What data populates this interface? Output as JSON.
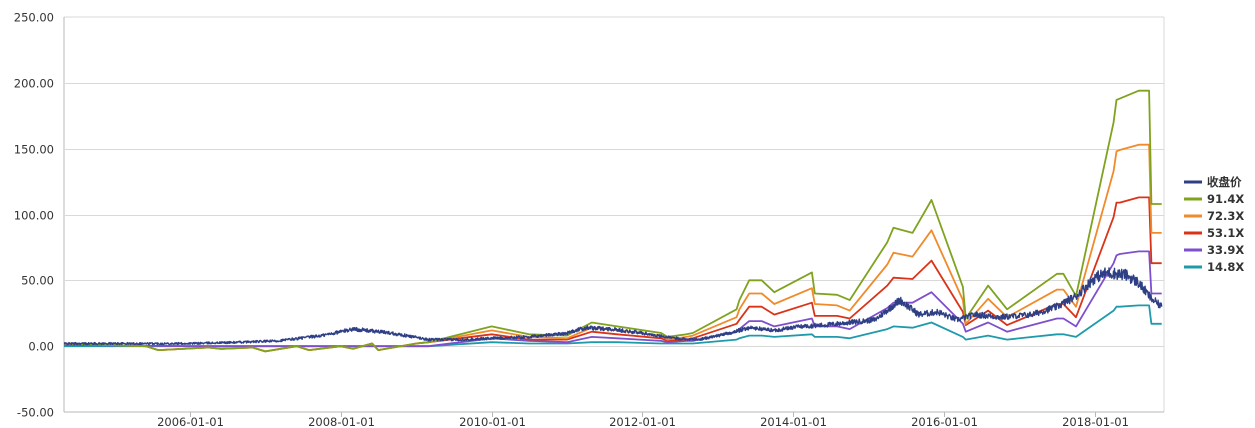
{
  "chart_data": {
    "type": "line",
    "title": "",
    "xlabel": "",
    "ylabel": "",
    "ylim": [
      -50,
      250
    ],
    "yticks": [
      "-50.00",
      "0.00",
      "50.00",
      "100.00",
      "150.00",
      "200.00",
      "250.00"
    ],
    "xlim": [
      "2004-05-01",
      "2018-12-01"
    ],
    "xticks": [
      "2006-01-01",
      "2008-01-01",
      "2010-01-01",
      "2012-01-01",
      "2014-01-01",
      "2016-01-01",
      "2018-01-01"
    ],
    "grid": "horizontal",
    "legend_position": "right",
    "colors": {
      "grid": "#d9d9d9",
      "axis": "#b8b8b8",
      "text": "#333333"
    },
    "series": [
      {
        "name": "收盘价",
        "color": "#2e3f86",
        "noisy": true,
        "x": [
          "2004-05-01",
          "2005-01-01",
          "2006-01-01",
          "2006-09-01",
          "2007-03-01",
          "2007-10-01",
          "2008-03-01",
          "2008-09-01",
          "2009-03-01",
          "2009-08-01",
          "2010-01-01",
          "2010-07-01",
          "2011-01-01",
          "2011-04-01",
          "2011-08-01",
          "2012-01-01",
          "2012-06-01",
          "2012-10-01",
          "2013-03-01",
          "2013-06-01",
          "2013-10-01",
          "2014-02-01",
          "2014-06-01",
          "2014-10-01",
          "2015-02-01",
          "2015-06-01",
          "2015-09-01",
          "2015-12-01",
          "2016-03-01",
          "2016-06-01",
          "2016-10-01",
          "2017-03-01",
          "2017-07-01",
          "2017-10-01",
          "2018-01-01",
          "2018-03-01",
          "2018-06-01",
          "2018-08-01",
          "2018-10-01",
          "2018-11-20"
        ],
        "y": [
          2,
          2,
          2,
          3,
          4,
          8,
          13,
          10,
          5,
          5,
          6,
          7,
          10,
          14,
          13,
          10,
          6,
          5,
          10,
          14,
          12,
          15,
          16,
          18,
          20,
          35,
          24,
          26,
          20,
          24,
          22,
          24,
          30,
          38,
          52,
          56,
          54,
          48,
          36,
          30
        ]
      },
      {
        "name": "91.4X",
        "color": "#7fa21f",
        "x": [
          "2004-05-01",
          "2005-06-01",
          "2005-08-01",
          "2006-04-01",
          "2006-06-01",
          "2006-11-01",
          "2007-01-01",
          "2007-06-01",
          "2007-08-01",
          "2008-01-01",
          "2008-03-01",
          "2008-06-01",
          "2008-07-01",
          "2009-01-01",
          "2009-03-01",
          "2010-01-01",
          "2010-07-01",
          "2011-01-01",
          "2011-05-01",
          "2011-09-01",
          "2012-04-01",
          "2012-05-01",
          "2012-08-01",
          "2012-09-01",
          "2013-04-01",
          "2013-04-15",
          "2013-06-01",
          "2013-08-01",
          "2013-10-01",
          "2014-04-01",
          "2014-04-15",
          "2014-08-01",
          "2014-10-01",
          "2015-04-01",
          "2015-05-01",
          "2015-08-01",
          "2015-11-01",
          "2016-04-01",
          "2016-04-15",
          "2016-08-01",
          "2016-11-01",
          "2017-07-01",
          "2017-08-01",
          "2017-10-01",
          "2018-04-01",
          "2018-04-15",
          "2018-05-01",
          "2018-08-01",
          "2018-09-20",
          "2018-10-01",
          "2018-11-20"
        ],
        "y": [
          2,
          0,
          -3,
          -1,
          -2,
          -1,
          -4,
          0,
          -3,
          0,
          -2,
          2,
          -3,
          2,
          3,
          15,
          9,
          8,
          18,
          15,
          10,
          7,
          9,
          10,
          28,
          35,
          50,
          50,
          41,
          56,
          40,
          39,
          35,
          79,
          90,
          86,
          111,
          45,
          21,
          46,
          28,
          55,
          55,
          38,
          170,
          187,
          188,
          194,
          194,
          108,
          108
        ]
      },
      {
        "name": "72.3X",
        "color": "#f08a2b",
        "x": [
          "2004-05-01",
          "2005-06-01",
          "2005-08-01",
          "2006-04-01",
          "2006-06-01",
          "2006-11-01",
          "2007-01-01",
          "2007-06-01",
          "2007-08-01",
          "2008-01-01",
          "2008-03-01",
          "2008-06-01",
          "2008-07-01",
          "2009-01-01",
          "2009-03-01",
          "2010-01-01",
          "2010-07-01",
          "2011-01-01",
          "2011-05-01",
          "2011-09-01",
          "2012-04-01",
          "2012-05-01",
          "2012-08-01",
          "2012-09-01",
          "2013-04-01",
          "2013-04-15",
          "2013-06-01",
          "2013-08-01",
          "2013-10-01",
          "2014-04-01",
          "2014-04-15",
          "2014-08-01",
          "2014-10-01",
          "2015-04-01",
          "2015-05-01",
          "2015-08-01",
          "2015-11-01",
          "2016-04-01",
          "2016-04-15",
          "2016-08-01",
          "2016-11-01",
          "2017-07-01",
          "2017-08-01",
          "2017-10-01",
          "2018-04-01",
          "2018-04-15",
          "2018-05-01",
          "2018-08-01",
          "2018-09-20",
          "2018-10-01",
          "2018-11-20"
        ],
        "y": [
          2,
          0,
          -3,
          -1,
          -2,
          -1,
          -4,
          0,
          -3,
          0,
          -2,
          2,
          -3,
          2,
          3,
          12,
          7,
          6,
          14,
          12,
          8,
          5,
          7,
          8,
          22,
          28,
          40,
          40,
          32,
          44,
          32,
          31,
          27,
          62,
          71,
          68,
          88,
          35,
          17,
          36,
          22,
          43,
          43,
          30,
          133,
          148,
          149,
          153,
          153,
          86,
          86
        ]
      },
      {
        "name": "53.1X",
        "color": "#d9341a",
        "x": [
          "2004-05-01",
          "2005-06-01",
          "2005-08-01",
          "2006-04-01",
          "2006-06-01",
          "2006-11-01",
          "2007-01-01",
          "2007-06-01",
          "2007-08-01",
          "2008-01-01",
          "2008-03-01",
          "2008-06-01",
          "2008-07-01",
          "2009-01-01",
          "2009-03-01",
          "2010-01-01",
          "2010-07-01",
          "2011-01-01",
          "2011-05-01",
          "2011-09-01",
          "2012-04-01",
          "2012-05-01",
          "2012-08-01",
          "2012-09-01",
          "2013-04-01",
          "2013-04-15",
          "2013-06-01",
          "2013-08-01",
          "2013-10-01",
          "2014-04-01",
          "2014-04-15",
          "2014-08-01",
          "2014-10-01",
          "2015-04-01",
          "2015-05-01",
          "2015-08-01",
          "2015-11-01",
          "2016-04-01",
          "2016-04-15",
          "2016-08-01",
          "2016-11-01",
          "2017-07-01",
          "2017-08-01",
          "2017-10-01",
          "2018-04-01",
          "2018-04-15",
          "2018-05-01",
          "2018-08-01",
          "2018-09-20",
          "2018-10-01",
          "2018-11-20"
        ],
        "y": [
          2,
          0,
          -3,
          -1,
          -2,
          -1,
          -4,
          0,
          -3,
          0,
          -2,
          2,
          -3,
          2,
          3,
          9,
          5,
          5,
          11,
          9,
          6,
          4,
          5,
          6,
          17,
          20,
          30,
          30,
          24,
          33,
          23,
          23,
          21,
          46,
          52,
          51,
          65,
          26,
          16,
          27,
          16,
          32,
          32,
          22,
          98,
          109,
          109,
          113,
          113,
          63,
          63
        ]
      },
      {
        "name": "33.9X",
        "color": "#7e4fcc",
        "x": [
          "2004-05-01",
          "2006-01-01",
          "2008-01-01",
          "2009-03-01",
          "2010-01-01",
          "2010-07-01",
          "2011-01-01",
          "2011-05-01",
          "2011-09-01",
          "2012-04-01",
          "2012-05-01",
          "2012-08-01",
          "2012-09-01",
          "2013-04-01",
          "2013-04-15",
          "2013-06-01",
          "2013-08-01",
          "2013-10-01",
          "2014-04-01",
          "2014-04-15",
          "2014-08-01",
          "2014-10-01",
          "2015-04-01",
          "2015-05-01",
          "2015-08-01",
          "2015-11-01",
          "2016-04-01",
          "2016-04-15",
          "2016-08-01",
          "2016-11-01",
          "2017-07-01",
          "2017-08-01",
          "2017-10-01",
          "2018-04-01",
          "2018-04-15",
          "2018-05-01",
          "2018-08-01",
          "2018-09-20",
          "2018-10-01",
          "2018-11-20"
        ],
        "y": [
          1,
          0,
          0,
          0,
          6,
          4,
          3,
          7,
          6,
          4,
          3,
          4,
          4,
          11,
          13,
          19,
          19,
          15,
          21,
          15,
          15,
          13,
          29,
          33,
          33,
          41,
          17,
          11,
          18,
          11,
          21,
          21,
          15,
          63,
          69,
          70,
          72,
          72,
          40,
          40
        ]
      },
      {
        "name": "14.8X",
        "color": "#1f9aab",
        "x": [
          "2004-05-01",
          "2006-01-01",
          "2008-01-01",
          "2009-03-01",
          "2010-01-01",
          "2010-07-01",
          "2011-01-01",
          "2011-05-01",
          "2011-09-01",
          "2012-04-01",
          "2012-05-01",
          "2012-08-01",
          "2012-09-01",
          "2013-04-01",
          "2013-04-15",
          "2013-06-01",
          "2013-08-01",
          "2013-10-01",
          "2014-04-01",
          "2014-04-15",
          "2014-08-01",
          "2014-10-01",
          "2015-04-01",
          "2015-05-01",
          "2015-08-01",
          "2015-11-01",
          "2016-04-01",
          "2016-04-15",
          "2016-08-01",
          "2016-11-01",
          "2017-07-01",
          "2017-08-01",
          "2017-10-01",
          "2018-04-01",
          "2018-04-15",
          "2018-05-01",
          "2018-08-01",
          "2018-09-20",
          "2018-10-01",
          "2018-11-20"
        ],
        "y": [
          0,
          0,
          0,
          0,
          3,
          2,
          2,
          3,
          3,
          2,
          2,
          2,
          2,
          5,
          6,
          8,
          8,
          7,
          9,
          7,
          7,
          6,
          13,
          15,
          14,
          18,
          7,
          5,
          8,
          5,
          9,
          9,
          7,
          27,
          30,
          30,
          31,
          31,
          17,
          17
        ]
      }
    ]
  }
}
